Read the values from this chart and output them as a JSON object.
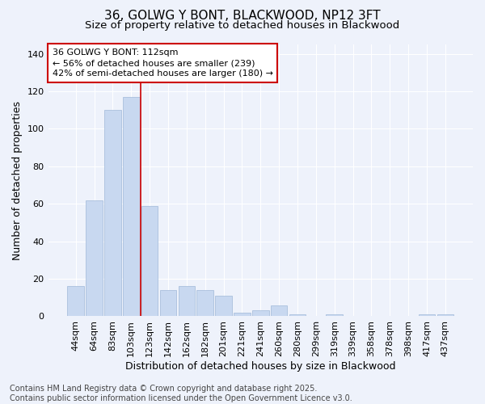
{
  "title_line1": "36, GOLWG Y BONT, BLACKWOOD, NP12 3FT",
  "title_line2": "Size of property relative to detached houses in Blackwood",
  "xlabel": "Distribution of detached houses by size in Blackwood",
  "ylabel": "Number of detached properties",
  "categories": [
    "44sqm",
    "64sqm",
    "83sqm",
    "103sqm",
    "123sqm",
    "142sqm",
    "162sqm",
    "182sqm",
    "201sqm",
    "221sqm",
    "241sqm",
    "260sqm",
    "280sqm",
    "299sqm",
    "319sqm",
    "339sqm",
    "358sqm",
    "378sqm",
    "398sqm",
    "417sqm",
    "437sqm"
  ],
  "values": [
    16,
    62,
    110,
    117,
    59,
    14,
    16,
    14,
    11,
    2,
    3,
    6,
    1,
    0,
    1,
    0,
    0,
    0,
    0,
    1,
    1
  ],
  "bar_color": "#c8d8f0",
  "bar_edge_color": "#a0b8d8",
  "red_line_x": 3.5,
  "ylim": [
    0,
    145
  ],
  "yticks": [
    0,
    20,
    40,
    60,
    80,
    100,
    120,
    140
  ],
  "annotation_text": "36 GOLWG Y BONT: 112sqm\n← 56% of detached houses are smaller (239)\n42% of semi-detached houses are larger (180) →",
  "annotation_box_facecolor": "#ffffff",
  "annotation_box_edgecolor": "#cc0000",
  "footnote": "Contains HM Land Registry data © Crown copyright and database right 2025.\nContains public sector information licensed under the Open Government Licence v3.0.",
  "bg_color": "#eef2fb",
  "plot_bg_color": "#eef2fb",
  "grid_color": "#ffffff",
  "title_fontsize": 11,
  "subtitle_fontsize": 9.5,
  "axis_label_fontsize": 9,
  "tick_fontsize": 8,
  "annotation_fontsize": 8,
  "footnote_fontsize": 7
}
